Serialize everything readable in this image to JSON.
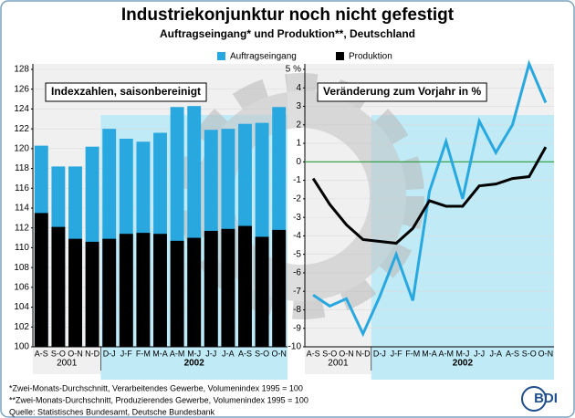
{
  "title": "Industriekonjunktur noch nicht gefestigt",
  "subtitle": "Auftragseingang* und Produktion**, Deutschland",
  "notes": [
    "*Zwei-Monats-Durchschnitt, Verarbeitendes Gewerbe, Volumenindex 1995 = 100",
    "**Zwei-Monats-Durchschnitt, Produzierendes Gewerbe, Volumenindex 1995 = 100",
    "Quelle: Statistisches Bundesamt, Deutsche Bundesbank"
  ],
  "logo": "BDI",
  "chart_data": [
    {
      "type": "bar",
      "label": "Indexzahlen, saisonbereinigt",
      "categories": [
        "A-S",
        "S-O",
        "O-N",
        "N-D",
        "D-J",
        "J-F",
        "F-M",
        "M-A",
        "A-M",
        "M-J",
        "J-J",
        "J-A",
        "A-S",
        "S-O",
        "O-N"
      ],
      "year_labels": [
        "2001",
        "2002"
      ],
      "series": [
        {
          "name": "Auftragseingang",
          "color": "#29a8e0",
          "values": [
            120.3,
            118.2,
            118.2,
            120.2,
            122.0,
            121.0,
            120.7,
            121.6,
            124.2,
            124.3,
            121.9,
            122.0,
            122.5,
            122.6,
            124.2
          ]
        },
        {
          "name": "Produktion",
          "color": "#000000",
          "values": [
            113.5,
            112.1,
            110.9,
            110.6,
            110.9,
            111.4,
            111.5,
            111.4,
            110.7,
            111.0,
            111.7,
            111.9,
            112.2,
            111.1,
            111.8
          ]
        }
      ],
      "ylim": [
        100,
        128
      ],
      "yticks": [
        100,
        102,
        104,
        106,
        108,
        110,
        112,
        114,
        116,
        118,
        120,
        122,
        124,
        126,
        128
      ],
      "grid": true
    },
    {
      "type": "line",
      "label": "Veränderung zum Vorjahr in %",
      "categories": [
        "A-S",
        "S-O",
        "O-N",
        "N-D",
        "D-J",
        "J-F",
        "F-M",
        "M-A",
        "A-M",
        "M-J",
        "J-J",
        "J-A",
        "A-S",
        "S-O",
        "O-N"
      ],
      "year_labels": [
        "2001",
        "2002"
      ],
      "series": [
        {
          "color": "#29a8e0",
          "values": [
            -7.2,
            -7.8,
            -7.4,
            -9.3,
            -7.3,
            -5.0,
            -7.5,
            -1.6,
            1.1,
            -2.0,
            2.2,
            0.5,
            2.0,
            5.3,
            3.2
          ]
        },
        {
          "color": "#000000",
          "values": [
            -0.9,
            -2.3,
            -3.4,
            -4.2,
            -4.3,
            -4.4,
            -3.6,
            -2.1,
            -2.4,
            -2.4,
            -1.3,
            -1.2,
            -0.9,
            -0.8,
            0.8
          ]
        }
      ],
      "ylim": [
        -10,
        5
      ],
      "yticks": [
        -10,
        -9,
        -8,
        -7,
        -6,
        -5,
        -4,
        -3,
        -2,
        -1,
        0,
        1,
        2,
        3,
        4,
        {
          "value": 5,
          "label": "5 %"
        }
      ],
      "grid": true,
      "zero_line_color": "#2a9d3a"
    }
  ]
}
